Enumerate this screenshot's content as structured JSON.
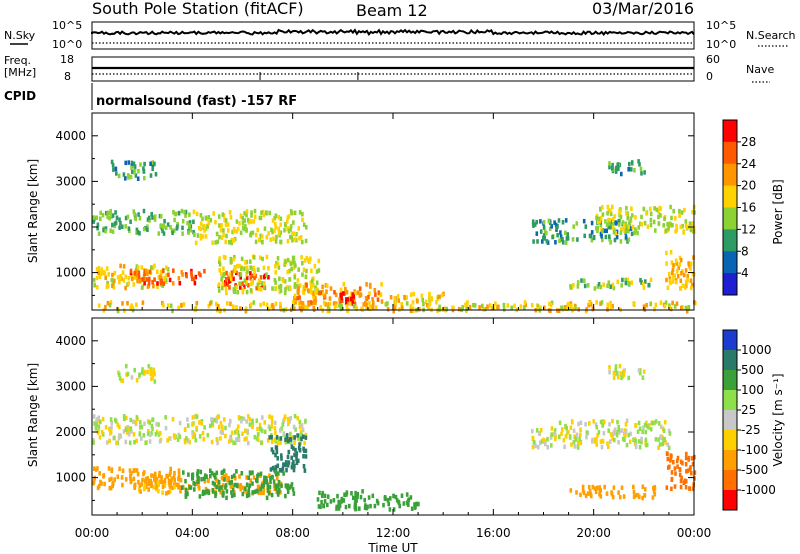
{
  "header": {
    "station": "South Pole Station (fitACF)",
    "beam": "Beam 12",
    "date": "03/Mar/2016"
  },
  "noise_panel": {
    "left_label": "N.Sky",
    "right_label": "N.Search",
    "left_ticks": [
      "10^5",
      "10^0"
    ],
    "right_ticks": [
      "10^5",
      "10^0"
    ]
  },
  "freq_panel": {
    "left_label_1": "Freq.",
    "left_label_2": "[MHz]",
    "right_label": "Nave",
    "left_ticks": [
      "18",
      "8"
    ],
    "right_ticks": [
      "60",
      "0"
    ]
  },
  "cpid_panel": {
    "label": "CPID",
    "program": "normalsound (fast) -157 RF"
  },
  "range_axis": {
    "label": "Slant Range [km]",
    "ticks": [
      "4000",
      "3000",
      "2000",
      "1000"
    ]
  },
  "time_axis": {
    "label": "Time UT",
    "ticks": [
      "00:00",
      "04:00",
      "08:00",
      "12:00",
      "16:00",
      "20:00",
      "00:00"
    ]
  },
  "power_scale": {
    "label": "Power [dB]",
    "ticks": [
      "28",
      "24",
      "20",
      "16",
      "12",
      "8",
      "4"
    ],
    "colors": [
      "#ff0000",
      "#ff5a00",
      "#ff9600",
      "#ffd200",
      "#8cd232",
      "#2d9b64",
      "#0a64b4",
      "#1e1ed2"
    ]
  },
  "velocity_scale": {
    "label": "Velocity [m s⁻¹]",
    "ticks": [
      "1000",
      "500",
      "100",
      "25",
      "-25",
      "-100",
      "-500",
      "-1000"
    ],
    "colors": [
      "#1c3ccf",
      "#2a7a6a",
      "#3aa13a",
      "#8ee04a",
      "#c8c8c8",
      "#ffd000",
      "#ffa000",
      "#ff7000",
      "#ff0000"
    ]
  },
  "chart_data": [
    {
      "type": "heatmap",
      "title": "Power [dB]",
      "xlabel": "Time UT",
      "ylabel": "Slant Range [km]",
      "xlim": [
        "00:00",
        "24:00"
      ],
      "ylim": [
        180,
        4500
      ],
      "color_scale": [
        4,
        28
      ],
      "regions": [
        {
          "t": [
            0.0,
            3.0
          ],
          "range": [
            700,
            1200
          ],
          "value": 16
        },
        {
          "t": [
            1.5,
            4.5
          ],
          "range": [
            800,
            1100
          ],
          "value": 24
        },
        {
          "t": [
            5.0,
            7.0
          ],
          "range": [
            700,
            1050
          ],
          "value": 26
        },
        {
          "t": [
            0.0,
            4.0
          ],
          "range": [
            1900,
            2400
          ],
          "value": 10
        },
        {
          "t": [
            4.0,
            8.5
          ],
          "range": [
            1700,
            2400
          ],
          "value": 14
        },
        {
          "t": [
            0.7,
            2.5
          ],
          "range": [
            3100,
            3500
          ],
          "value": 8
        },
        {
          "t": [
            5.0,
            9.0
          ],
          "range": [
            600,
            1400
          ],
          "value": 14
        },
        {
          "t": [
            8.0,
            11.5
          ],
          "range": [
            350,
            800
          ],
          "value": 20
        },
        {
          "t": [
            9.8,
            10.4
          ],
          "range": [
            350,
            600
          ],
          "value": 28
        },
        {
          "t": [
            11.5,
            14.0
          ],
          "range": [
            350,
            600
          ],
          "value": 16
        },
        {
          "t": [
            17.5,
            21.5
          ],
          "range": [
            1700,
            2200
          ],
          "value": 8
        },
        {
          "t": [
            20.0,
            24.0
          ],
          "range": [
            1900,
            2500
          ],
          "value": 14
        },
        {
          "t": [
            19.0,
            22.5
          ],
          "range": [
            700,
            900
          ],
          "value": 12
        },
        {
          "t": [
            22.8,
            24.0
          ],
          "range": [
            700,
            1500
          ],
          "value": 18
        },
        {
          "t": [
            20.5,
            22.0
          ],
          "range": [
            3200,
            3500
          ],
          "value": 8
        },
        {
          "t": [
            0.0,
            24.0
          ],
          "range": [
            200,
            400
          ],
          "value": 16
        }
      ]
    },
    {
      "type": "heatmap",
      "title": "Velocity [m s⁻¹]",
      "xlabel": "Time UT",
      "ylabel": "Slant Range [km]",
      "xlim": [
        "00:00",
        "24:00"
      ],
      "ylim": [
        180,
        4500
      ],
      "color_scale": [
        -1000,
        1000
      ],
      "regions": [
        {
          "t": [
            0.0,
            3.5
          ],
          "range": [
            800,
            1250
          ],
          "value": -300
        },
        {
          "t": [
            1.5,
            4.5
          ],
          "range": [
            700,
            1000
          ],
          "value": -150
        },
        {
          "t": [
            4.5,
            7.5
          ],
          "range": [
            700,
            1100
          ],
          "value": -400
        },
        {
          "t": [
            0.0,
            8.5
          ],
          "range": [
            1800,
            2400
          ],
          "value": 0
        },
        {
          "t": [
            1.0,
            2.5
          ],
          "range": [
            3150,
            3500
          ],
          "value": 0
        },
        {
          "t": [
            7.0,
            8.5
          ],
          "range": [
            1200,
            2000
          ],
          "value": 700
        },
        {
          "t": [
            3.5,
            8.0
          ],
          "range": [
            600,
            1200
          ],
          "value": 300
        },
        {
          "t": [
            8.8,
            13.0
          ],
          "range": [
            350,
            750
          ],
          "value": 200
        },
        {
          "t": [
            17.5,
            23.0
          ],
          "range": [
            1700,
            2300
          ],
          "value": 0
        },
        {
          "t": [
            19.0,
            22.5
          ],
          "range": [
            600,
            850
          ],
          "value": -400
        },
        {
          "t": [
            22.8,
            24.0
          ],
          "range": [
            800,
            1600
          ],
          "value": -600
        },
        {
          "t": [
            20.5,
            22.0
          ],
          "range": [
            3200,
            3500
          ],
          "value": 0
        }
      ]
    }
  ]
}
